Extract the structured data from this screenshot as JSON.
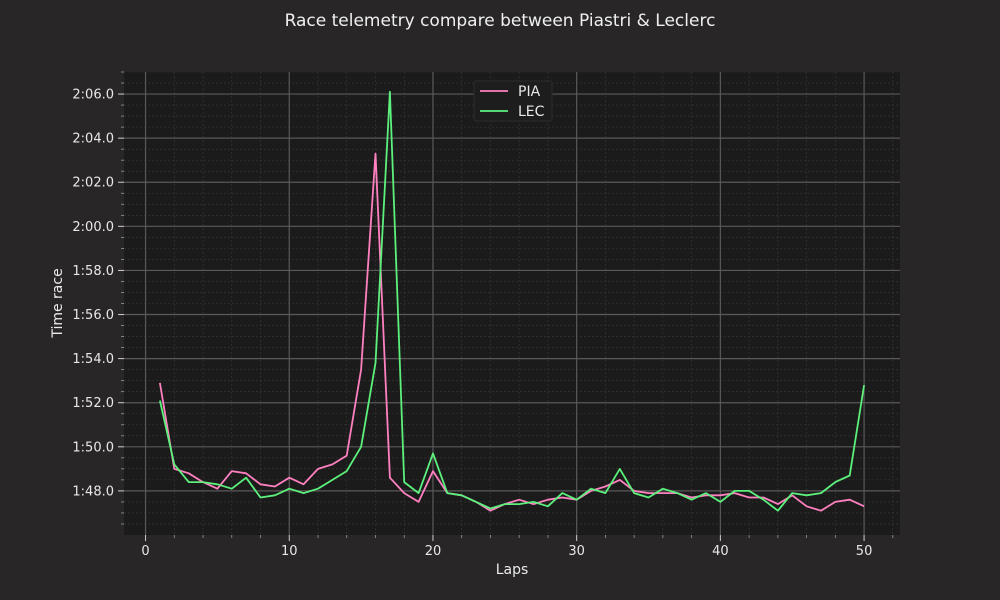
{
  "chart_data": {
    "type": "line",
    "title": "Race telemetry compare between Piastri & Leclerc",
    "xlabel": "Laps",
    "ylabel": "Time race",
    "xlim": [
      -1.5,
      52.5
    ],
    "ylim": [
      106.0,
      127.0
    ],
    "xticks": [
      0,
      10,
      20,
      30,
      40,
      50
    ],
    "yticks": [
      108,
      110,
      112,
      114,
      116,
      118,
      120,
      122,
      124,
      126
    ],
    "ytick_labels": [
      "1:48.0",
      "1:50.0",
      "1:52.0",
      "1:54.0",
      "1:56.0",
      "1:58.0",
      "2:00.0",
      "2:02.0",
      "2:04.0",
      "2:06.0"
    ],
    "grid": true,
    "minor_grid": true,
    "legend_position": "top-center",
    "background": "#1c1b1b",
    "figure_background": "#282626",
    "x": [
      1,
      2,
      3,
      4,
      5,
      6,
      7,
      8,
      9,
      10,
      11,
      12,
      13,
      14,
      15,
      16,
      17,
      18,
      19,
      20,
      21,
      22,
      23,
      24,
      25,
      26,
      27,
      28,
      29,
      30,
      31,
      32,
      33,
      34,
      35,
      36,
      37,
      38,
      39,
      40,
      41,
      42,
      43,
      44,
      45,
      46,
      47,
      48,
      49,
      50
    ],
    "series": [
      {
        "name": "PIA",
        "color": "#ff80c0",
        "values": [
          112.9,
          109.0,
          108.8,
          108.4,
          108.1,
          108.9,
          108.8,
          108.3,
          108.2,
          108.6,
          108.3,
          109.0,
          109.2,
          109.6,
          113.5,
          123.3,
          108.6,
          107.9,
          107.5,
          108.9,
          107.9,
          107.8,
          107.5,
          107.1,
          107.4,
          107.6,
          107.4,
          107.6,
          107.7,
          107.6,
          108.0,
          108.2,
          108.5,
          108.0,
          107.9,
          107.9,
          107.9,
          107.7,
          107.8,
          107.8,
          107.9,
          107.7,
          107.7,
          107.4,
          107.8,
          107.3,
          107.1,
          107.5,
          107.6,
          107.3
        ]
      },
      {
        "name": "LEC",
        "color": "#5cf07c",
        "values": [
          112.1,
          109.2,
          108.4,
          108.4,
          108.3,
          108.1,
          108.6,
          107.7,
          107.8,
          108.1,
          107.9,
          108.1,
          108.5,
          108.9,
          110.0,
          113.8,
          126.1,
          108.4,
          107.9,
          109.7,
          107.9,
          107.8,
          107.5,
          107.2,
          107.4,
          107.4,
          107.5,
          107.3,
          107.9,
          107.6,
          108.1,
          107.9,
          109.0,
          107.9,
          107.7,
          108.1,
          107.9,
          107.6,
          107.9,
          107.5,
          108.0,
          108.0,
          107.6,
          107.1,
          107.9,
          107.8,
          107.9,
          108.4,
          108.7,
          112.8
        ]
      }
    ]
  }
}
